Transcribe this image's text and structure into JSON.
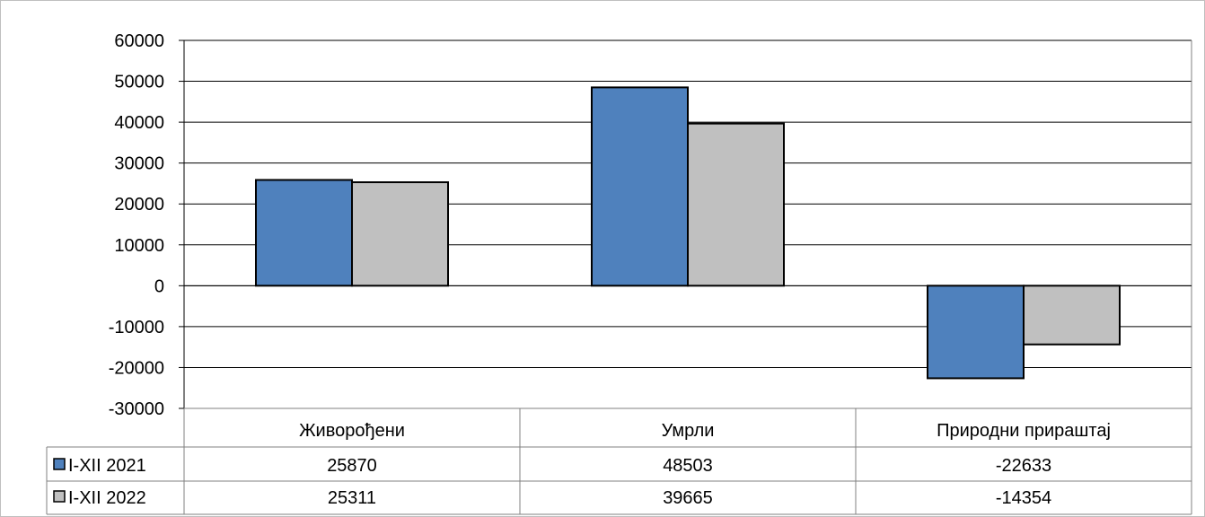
{
  "chart_data": {
    "type": "bar",
    "categories": [
      "Живорођени",
      "Умрли",
      "Природни прираштај"
    ],
    "series": [
      {
        "name": "I-XII 2021",
        "values": [
          25870,
          48503,
          -22633
        ],
        "color": "#4f81bd"
      },
      {
        "name": "I-XII 2022",
        "values": [
          25311,
          39665,
          -14354
        ],
        "color": "#c0c0c0"
      }
    ],
    "ylim": [
      -30000,
      60000
    ],
    "yticks": [
      60000,
      50000,
      40000,
      30000,
      20000,
      10000,
      0,
      -10000,
      -20000,
      -30000
    ],
    "grid": true,
    "legend": "data-table",
    "title": "",
    "xlabel": "",
    "ylabel": ""
  }
}
